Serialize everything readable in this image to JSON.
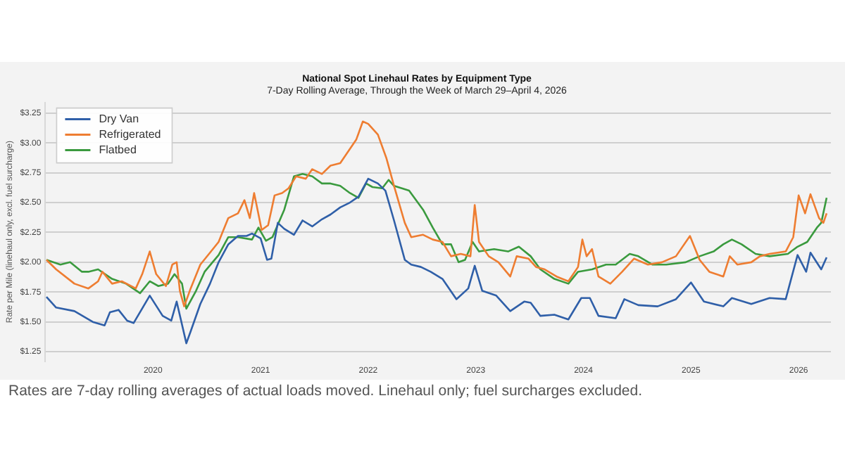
{
  "chart_data": {
    "type": "line",
    "title": "National Spot Linehaul Rates by Equipment Type",
    "subtitle": "7-Day Rolling Average, Through the Week of March 29–April 4, 2026",
    "ylabel": "Rate per Mile (linehaul only, excl. fuel surcharge)",
    "annotations": [
      "Rates are 7-day rolling averages of actual loads moved. Linehaul only; fuel surcharges excluded."
    ],
    "xlim": [
      2019,
      2026.3
    ],
    "xticks": [
      2020,
      2021,
      2022,
      2023,
      2024,
      2025,
      2026
    ],
    "ylim": [
      1.17,
      3.34
    ],
    "yticks": [
      {
        "value": 1.25,
        "label": "$1.25"
      },
      {
        "value": 1.5,
        "label": "$1.50"
      },
      {
        "value": 1.75,
        "label": "$1.75"
      },
      {
        "value": 2,
        "label": "$2.00"
      },
      {
        "value": 2.25,
        "label": "$2.25"
      },
      {
        "value": 2.5,
        "label": "$2.50"
      },
      {
        "value": 2.75,
        "label": "$2.75"
      },
      {
        "value": 3,
        "label": "$3.00"
      },
      {
        "value": 3.25,
        "label": "$3.25"
      }
    ],
    "grid": "y",
    "legend": "top left",
    "marker": "none",
    "line_style": "solid",
    "series": [
      {
        "name": "Dry Van",
        "color": "#2f5fa8",
        "x": [
          2019.01,
          2019.1,
          2019.27,
          2019.44,
          2019.55,
          2019.6,
          2019.68,
          2019.76,
          2019.82,
          2019.97,
          2020.09,
          2020.17,
          2020.22,
          2020.31,
          2020.35,
          2020.44,
          2020.53,
          2020.61,
          2020.7,
          2020.79,
          2020.87,
          2020.92,
          2021.0,
          2021.06,
          2021.1,
          2021.16,
          2021.22,
          2021.31,
          2021.39,
          2021.48,
          2021.57,
          2021.65,
          2021.74,
          2021.83,
          2021.91,
          2022.0,
          2022.09,
          2022.16,
          2022.24,
          2022.34,
          2022.4,
          2022.49,
          2022.58,
          2022.69,
          2022.82,
          2022.93,
          2022.99,
          2023.06,
          2023.19,
          2023.32,
          2023.45,
          2023.51,
          2023.6,
          2023.73,
          2023.86,
          2023.98,
          2024.06,
          2024.14,
          2024.3,
          2024.38,
          2024.51,
          2024.69,
          2024.86,
          2025.0,
          2025.12,
          2025.3,
          2025.38,
          2025.56,
          2025.73,
          2025.88,
          2025.99,
          2026.07,
          2026.11,
          2026.21,
          2026.26
        ],
        "values": [
          1.71,
          1.62,
          1.59,
          1.5,
          1.47,
          1.58,
          1.6,
          1.51,
          1.49,
          1.72,
          1.55,
          1.51,
          1.67,
          1.32,
          1.42,
          1.65,
          1.82,
          2.0,
          2.15,
          2.22,
          2.22,
          2.24,
          2.2,
          2.02,
          2.03,
          2.33,
          2.28,
          2.23,
          2.35,
          2.3,
          2.36,
          2.4,
          2.46,
          2.5,
          2.55,
          2.7,
          2.66,
          2.6,
          2.35,
          2.02,
          1.98,
          1.96,
          1.92,
          1.86,
          1.69,
          1.78,
          1.97,
          1.76,
          1.72,
          1.59,
          1.67,
          1.66,
          1.55,
          1.56,
          1.52,
          1.7,
          1.7,
          1.55,
          1.53,
          1.69,
          1.64,
          1.63,
          1.69,
          1.83,
          1.67,
          1.63,
          1.7,
          1.65,
          1.7,
          1.69,
          2.06,
          1.92,
          2.08,
          1.94,
          2.04
        ]
      },
      {
        "name": "Refrigerated",
        "color": "#ee7d31",
        "x": [
          2019.01,
          2019.1,
          2019.27,
          2019.4,
          2019.49,
          2019.53,
          2019.62,
          2019.71,
          2019.84,
          2019.9,
          2019.97,
          2020.03,
          2020.12,
          2020.18,
          2020.22,
          2020.25,
          2020.29,
          2020.35,
          2020.44,
          2020.53,
          2020.61,
          2020.7,
          2020.79,
          2020.85,
          2020.9,
          2020.94,
          2021.01,
          2021.07,
          2021.13,
          2021.2,
          2021.26,
          2021.33,
          2021.42,
          2021.48,
          2021.57,
          2021.65,
          2021.74,
          2021.83,
          2021.89,
          2021.95,
          2022.0,
          2022.09,
          2022.17,
          2022.24,
          2022.34,
          2022.4,
          2022.51,
          2022.6,
          2022.69,
          2022.77,
          2022.86,
          2022.95,
          2022.99,
          2023.03,
          2023.12,
          2023.21,
          2023.32,
          2023.38,
          2023.49,
          2023.56,
          2023.64,
          2023.75,
          2023.86,
          2023.95,
          2023.99,
          2024.03,
          2024.08,
          2024.14,
          2024.25,
          2024.36,
          2024.47,
          2024.6,
          2024.73,
          2024.86,
          2024.99,
          2025.08,
          2025.17,
          2025.3,
          2025.36,
          2025.43,
          2025.56,
          2025.64,
          2025.73,
          2025.88,
          2025.95,
          2026.0,
          2026.06,
          2026.11,
          2026.19,
          2026.23,
          2026.26
        ],
        "values": [
          2.02,
          1.94,
          1.82,
          1.78,
          1.84,
          1.92,
          1.82,
          1.84,
          1.78,
          1.9,
          2.09,
          1.9,
          1.8,
          1.98,
          2.0,
          1.76,
          1.63,
          1.78,
          1.98,
          2.08,
          2.17,
          2.37,
          2.41,
          2.52,
          2.37,
          2.58,
          2.27,
          2.31,
          2.56,
          2.58,
          2.62,
          2.72,
          2.7,
          2.78,
          2.74,
          2.81,
          2.83,
          2.95,
          3.03,
          3.18,
          3.16,
          3.07,
          2.87,
          2.64,
          2.33,
          2.21,
          2.23,
          2.19,
          2.17,
          2.05,
          2.07,
          2.05,
          2.48,
          2.17,
          2.05,
          2.0,
          1.88,
          2.05,
          2.03,
          1.96,
          1.94,
          1.88,
          1.84,
          1.96,
          2.19,
          2.05,
          2.11,
          1.88,
          1.82,
          1.92,
          2.03,
          1.98,
          2.0,
          2.05,
          2.22,
          2.02,
          1.92,
          1.88,
          2.05,
          1.98,
          2.0,
          2.05,
          2.07,
          2.09,
          2.21,
          2.56,
          2.41,
          2.57,
          2.37,
          2.33,
          2.41
        ]
      },
      {
        "name": "Flatbed",
        "color": "#3a9a3e",
        "x": [
          2019.01,
          2019.14,
          2019.23,
          2019.34,
          2019.4,
          2019.49,
          2019.62,
          2019.75,
          2019.88,
          2019.97,
          2020.05,
          2020.14,
          2020.2,
          2020.27,
          2020.31,
          2020.4,
          2020.48,
          2020.61,
          2020.7,
          2020.79,
          2020.92,
          2020.98,
          2021.05,
          2021.11,
          2021.22,
          2021.31,
          2021.39,
          2021.48,
          2021.57,
          2021.65,
          2021.74,
          2021.83,
          2021.91,
          2021.98,
          2022.04,
          2022.13,
          2022.19,
          2022.24,
          2022.38,
          2022.51,
          2022.6,
          2022.69,
          2022.77,
          2022.84,
          2022.9,
          2022.97,
          2023.03,
          2023.17,
          2023.3,
          2023.4,
          2023.51,
          2023.6,
          2023.73,
          2023.86,
          2023.95,
          2024.08,
          2024.21,
          2024.3,
          2024.43,
          2024.51,
          2024.64,
          2024.77,
          2024.95,
          2025.08,
          2025.21,
          2025.3,
          2025.38,
          2025.47,
          2025.6,
          2025.73,
          2025.9,
          2025.99,
          2026.08,
          2026.17,
          2026.21,
          2026.26
        ],
        "values": [
          2.02,
          1.98,
          2.0,
          1.92,
          1.92,
          1.94,
          1.86,
          1.82,
          1.74,
          1.84,
          1.8,
          1.82,
          1.9,
          1.82,
          1.61,
          1.76,
          1.92,
          2.06,
          2.21,
          2.21,
          2.19,
          2.29,
          2.18,
          2.21,
          2.44,
          2.72,
          2.74,
          2.72,
          2.66,
          2.66,
          2.64,
          2.58,
          2.54,
          2.66,
          2.63,
          2.62,
          2.69,
          2.64,
          2.6,
          2.44,
          2.29,
          2.15,
          2.15,
          2.0,
          2.02,
          2.17,
          2.09,
          2.11,
          2.09,
          2.13,
          2.05,
          1.94,
          1.86,
          1.82,
          1.92,
          1.94,
          1.98,
          1.98,
          2.07,
          2.05,
          1.98,
          1.98,
          2.0,
          2.05,
          2.09,
          2.15,
          2.19,
          2.15,
          2.07,
          2.05,
          2.07,
          2.13,
          2.17,
          2.29,
          2.33,
          2.54
        ]
      }
    ]
  }
}
